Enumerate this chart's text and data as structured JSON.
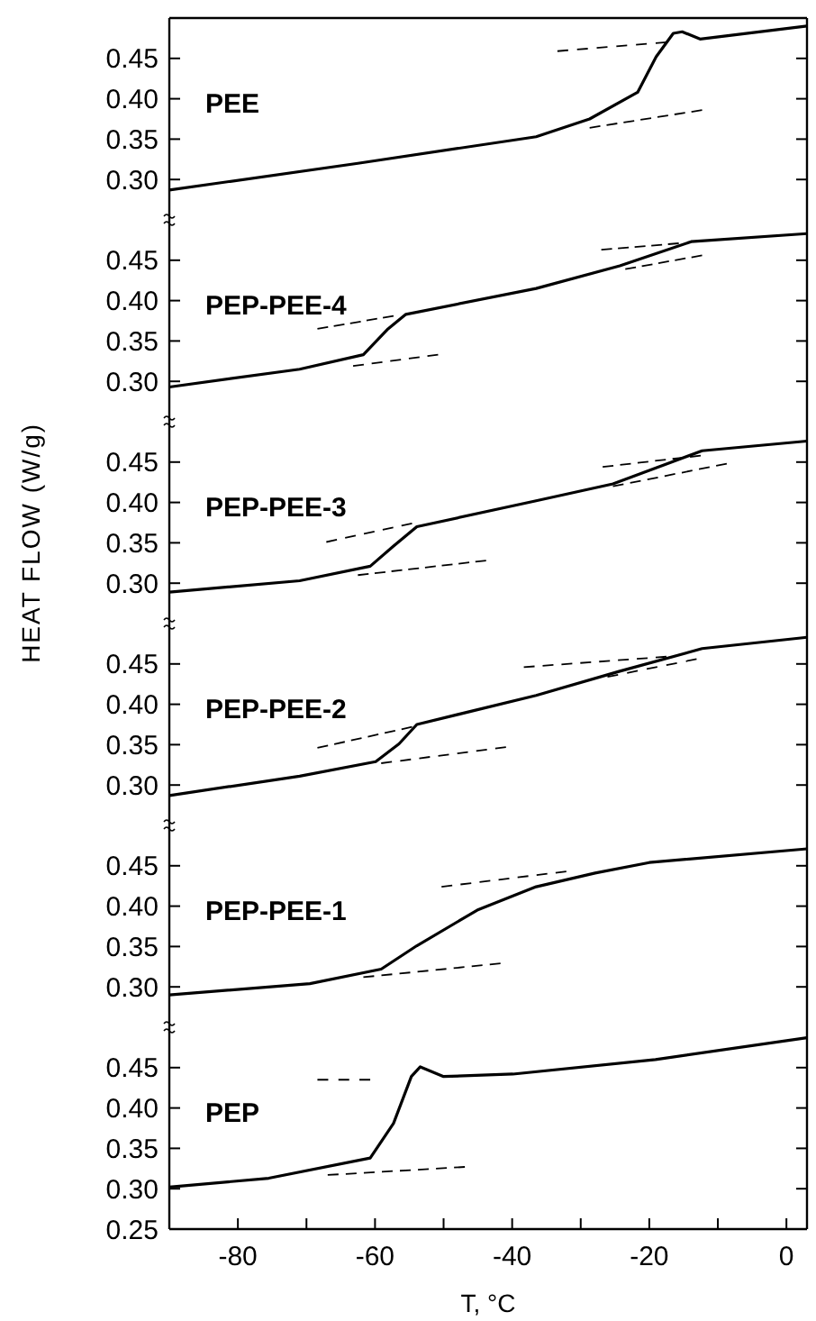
{
  "chart_data": [
    {
      "type": "line",
      "xlim": [
        -90,
        3
      ],
      "ylim": [
        0.25,
        0.5
      ],
      "yticks": [
        {
          "value": 0.3,
          "label": "0.30"
        },
        {
          "value": 0.35,
          "label": "0.35"
        },
        {
          "value": 0.4,
          "label": "0.40"
        },
        {
          "value": 0.45,
          "label": "0.45"
        }
      ],
      "tick_labels": "y",
      "series": [
        {
          "name": "PEE",
          "color": "#000000",
          "x": [
            -90,
            -62.5,
            -36.5,
            -28.7,
            -21.7,
            -19,
            -16.5,
            -15.2,
            -12.6,
            3
          ],
          "values": [
            0.287,
            0.32,
            0.353,
            0.375,
            0.408,
            0.452,
            0.481,
            0.483,
            0.474,
            0.49
          ]
        },
        {
          "color": "#000000",
          "line_style": "dashed",
          "x": [
            -33.4,
            -17.5
          ],
          "values": [
            0.459,
            0.47
          ]
        },
        {
          "color": "#000000",
          "line_style": "dashed",
          "x": [
            -28.7,
            -12.3
          ],
          "values": [
            0.364,
            0.386
          ]
        }
      ]
    },
    {
      "type": "line",
      "xlim": [
        -90,
        3
      ],
      "ylim": [
        0.25,
        0.5
      ],
      "yticks": [
        {
          "value": 0.3,
          "label": "0.30"
        },
        {
          "value": 0.35,
          "label": "0.35"
        },
        {
          "value": 0.4,
          "label": "0.40"
        },
        {
          "value": 0.45,
          "label": "0.45"
        }
      ],
      "tick_labels": "y",
      "series": [
        {
          "name": "PEP-PEE-4",
          "color": "#000000",
          "x": [
            -90,
            -71,
            -61.7,
            -58.1,
            -55.5,
            -36.5,
            -24.3,
            -13.9,
            3
          ],
          "values": [
            0.293,
            0.315,
            0.333,
            0.365,
            0.383,
            0.415,
            0.443,
            0.473,
            0.483
          ]
        },
        {
          "color": "#000000",
          "line_style": "dashed",
          "x": [
            -68.4,
            -57.3
          ],
          "values": [
            0.365,
            0.381
          ]
        },
        {
          "color": "#000000",
          "line_style": "dashed",
          "x": [
            -63.2,
            -50.8
          ],
          "values": [
            0.319,
            0.333
          ]
        },
        {
          "color": "#000000",
          "line_style": "dashed",
          "x": [
            -27,
            -15.7
          ],
          "values": [
            0.463,
            0.471
          ]
        },
        {
          "color": "#000000",
          "line_style": "dashed",
          "x": [
            -23.5,
            -12.3
          ],
          "values": [
            0.439,
            0.456
          ]
        }
      ]
    },
    {
      "type": "line",
      "xlim": [
        -90,
        3
      ],
      "ylim": [
        0.25,
        0.5
      ],
      "ylabel": "HEAT FLOW (W/g)",
      "yticks": [
        {
          "value": 0.3,
          "label": "0.30"
        },
        {
          "value": 0.35,
          "label": "0.35"
        },
        {
          "value": 0.4,
          "label": "0.40"
        },
        {
          "value": 0.45,
          "label": "0.45"
        }
      ],
      "tick_labels": "y",
      "series": [
        {
          "name": "PEP-PEE-3",
          "color": "#000000",
          "x": [
            -90,
            -71,
            -60.7,
            -57.3,
            -53.9,
            -36.5,
            -25.3,
            -12.3,
            3
          ],
          "values": [
            0.289,
            0.303,
            0.321,
            0.346,
            0.37,
            0.402,
            0.423,
            0.464,
            0.476
          ]
        },
        {
          "color": "#000000",
          "line_style": "dashed",
          "x": [
            -67.1,
            -54.6
          ],
          "values": [
            0.351,
            0.374
          ]
        },
        {
          "color": "#000000",
          "line_style": "dashed",
          "x": [
            -62.5,
            -43.8
          ],
          "values": [
            0.31,
            0.328
          ]
        },
        {
          "color": "#000000",
          "line_style": "dashed",
          "x": [
            -26.8,
            -12.5
          ],
          "values": [
            0.444,
            0.458
          ]
        },
        {
          "color": "#000000",
          "line_style": "dashed",
          "x": [
            -25.3,
            -8.7
          ],
          "values": [
            0.42,
            0.448
          ]
        }
      ]
    },
    {
      "type": "line",
      "xlim": [
        -90,
        3
      ],
      "ylim": [
        0.25,
        0.5
      ],
      "yticks": [
        {
          "value": 0.3,
          "label": "0.30"
        },
        {
          "value": 0.35,
          "label": "0.35"
        },
        {
          "value": 0.4,
          "label": "0.40"
        },
        {
          "value": 0.45,
          "label": "0.45"
        }
      ],
      "tick_labels": "y",
      "series": [
        {
          "name": "PEP-PEE-2",
          "color": "#000000",
          "x": [
            -90,
            -71,
            -59.9,
            -56.5,
            -53.9,
            -36.5,
            -24.3,
            -12.3,
            3
          ],
          "values": [
            0.287,
            0.311,
            0.329,
            0.351,
            0.375,
            0.411,
            0.441,
            0.469,
            0.483
          ]
        },
        {
          "color": "#000000",
          "line_style": "dashed",
          "x": [
            -68.4,
            -54.6
          ],
          "values": [
            0.346,
            0.372
          ]
        },
        {
          "color": "#000000",
          "line_style": "dashed",
          "x": [
            -59.1,
            -40.9
          ],
          "values": [
            0.327,
            0.347
          ]
        },
        {
          "color": "#000000",
          "line_style": "dashed",
          "x": [
            -38.3,
            -17.5
          ],
          "values": [
            0.446,
            0.459
          ]
        },
        {
          "color": "#000000",
          "line_style": "dashed",
          "x": [
            -26.1,
            -13.1
          ],
          "values": [
            0.434,
            0.456
          ]
        }
      ]
    },
    {
      "type": "line",
      "xlim": [
        -90,
        3
      ],
      "ylim": [
        0.25,
        0.5
      ],
      "yticks": [
        {
          "value": 0.3,
          "label": "0.30"
        },
        {
          "value": 0.35,
          "label": "0.35"
        },
        {
          "value": 0.4,
          "label": "0.40"
        },
        {
          "value": 0.45,
          "label": "0.45"
        }
      ],
      "tick_labels": "y",
      "series": [
        {
          "name": "PEP-PEE-1",
          "color": "#000000",
          "x": [
            -90,
            -69.5,
            -59.1,
            -53.9,
            -45.1,
            -36.5,
            -27.9,
            -20,
            3
          ],
          "values": [
            0.29,
            0.304,
            0.322,
            0.351,
            0.395,
            0.424,
            0.441,
            0.454,
            0.471
          ]
        },
        {
          "color": "#000000",
          "line_style": "dashed",
          "x": [
            -50.3,
            -32.1
          ],
          "values": [
            0.424,
            0.443
          ]
        },
        {
          "color": "#000000",
          "line_style": "dashed",
          "x": [
            -61.7,
            -41.7
          ],
          "values": [
            0.312,
            0.329
          ]
        }
      ]
    },
    {
      "type": "line",
      "xlim": [
        -90,
        3
      ],
      "ylim": [
        0.25,
        0.5
      ],
      "xlabel": "T, °C",
      "xticks": [
        -80,
        {
          "value": -70,
          "label": null
        },
        -60,
        {
          "value": -50,
          "label": null
        },
        -40,
        {
          "value": -30,
          "label": null
        },
        -20,
        {
          "value": -10,
          "label": null
        },
        0
      ],
      "yticks": [
        {
          "value": 0.25,
          "label": "0.25"
        },
        {
          "value": 0.3,
          "label": "0.30"
        },
        {
          "value": 0.35,
          "label": "0.35"
        },
        {
          "value": 0.4,
          "label": "0.40"
        },
        {
          "value": 0.45,
          "label": "0.45"
        }
      ],
      "series": [
        {
          "name": "PEP",
          "color": "#000000",
          "x": [
            -90,
            -75.5,
            -60.7,
            -57.3,
            -54.7,
            -53.4,
            -50,
            -39.9,
            -19.1,
            3
          ],
          "values": [
            0.302,
            0.313,
            0.338,
            0.381,
            0.439,
            0.451,
            0.439,
            0.442,
            0.46,
            0.487
          ]
        },
        {
          "color": "#000000",
          "line_style": "dashed",
          "x": [
            -68.4,
            -60.7
          ],
          "values": [
            0.435,
            0.435
          ]
        },
        {
          "color": "#000000",
          "line_style": "dashed",
          "x": [
            -66.9,
            -46.9
          ],
          "values": [
            0.317,
            0.327
          ]
        }
      ]
    }
  ]
}
